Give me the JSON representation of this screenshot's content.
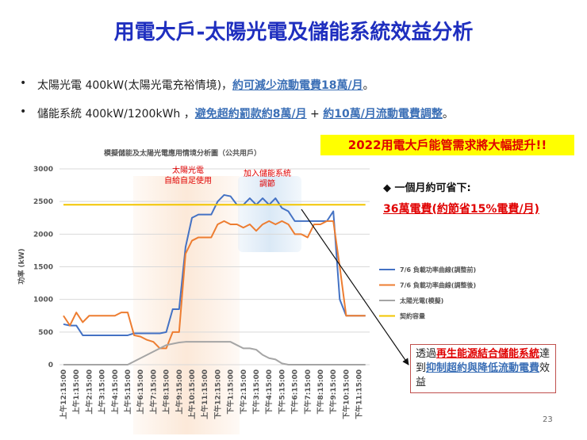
{
  "header": {
    "title": "用電大戶-太陽光電及儲能系統效益分析"
  },
  "bullets": [
    [
      "太陽光電 400kW(太陽光電充裕情境)，",
      "約可減少流動電費18萬/月",
      "。"
    ],
    [
      "儲能系統 400kW/1200kWh ，",
      "避免超約罰款約8萬/月",
      " + ",
      "約10萬/月流動電費調整",
      "。"
    ]
  ],
  "highlight": "2022用電大戶能管需求將大幅提升!!",
  "savings": {
    "label": "◆  一個月約可省下:",
    "value": "36萬電費(約節省15%電費/月)"
  },
  "callout": [
    "透過",
    "再生能源結合儲能系統",
    "達到",
    "抑制超約與降低流動電費",
    "效益"
  ],
  "page_number": "23",
  "chart_data": {
    "type": "line",
    "title": "模擬儲能及太陽光電應用情境分析圖（公共用戶）",
    "y_label": "功率 (kW)",
    "annotations": [
      [
        "太陽光電",
        "自給自足使用"
      ],
      [
        "加入儲能系統",
        "調節"
      ]
    ],
    "categories": [
      "上午12:15:00",
      null,
      "上午1:15:00",
      null,
      "上午2:15:00",
      null,
      "上午3:15:00",
      null,
      "上午4:15:00",
      null,
      "上午5:15:00",
      null,
      "上午6:15:00",
      null,
      "上午7:15:00",
      null,
      "上午8:15:00",
      null,
      "上午9:15:00",
      null,
      "上午10:15:00",
      null,
      "上午11:15:00",
      null,
      "下午12:15:00",
      null,
      "下午1:15:00",
      null,
      "下午2:15:00",
      null,
      "下午3:15:00",
      null,
      "下午4:15:00",
      null,
      "下午5:15:00",
      null,
      "下午6:15:00",
      null,
      "下午7:15:00",
      null,
      "下午8:15:00",
      null,
      "下午9:15:00",
      null,
      "下午10:15:00",
      null,
      "下午11:15:00",
      null
    ],
    "series": [
      {
        "name": "7/6 負載功率曲線(調整前)",
        "color": "#4472c4",
        "values": [
          620,
          600,
          600,
          450,
          450,
          450,
          450,
          450,
          450,
          450,
          450,
          480,
          480,
          480,
          480,
          480,
          500,
          850,
          850,
          1800,
          2250,
          2300,
          2300,
          2300,
          2500,
          2600,
          2580,
          2450,
          2450,
          2550,
          2450,
          2550,
          2450,
          2550,
          2400,
          2350,
          2200,
          2200,
          2200,
          2200,
          2200,
          2200,
          2350,
          1000,
          750,
          750,
          750,
          750
        ]
      },
      {
        "name": "7/6 負載功率曲線(調整後)",
        "color": "#ed7d31",
        "values": [
          750,
          600,
          800,
          650,
          750,
          750,
          750,
          750,
          750,
          800,
          800,
          450,
          430,
          380,
          350,
          250,
          250,
          500,
          500,
          1700,
          1900,
          1950,
          1950,
          1950,
          2150,
          2200,
          2150,
          2150,
          2100,
          2150,
          2050,
          2150,
          2200,
          2150,
          2200,
          2150,
          2000,
          2000,
          1950,
          2150,
          2150,
          2200,
          2200,
          1500,
          750,
          750,
          750,
          750
        ]
      },
      {
        "name": "太陽光電(模擬)",
        "color": "#a5a5a5",
        "values": [
          0,
          0,
          0,
          0,
          0,
          0,
          0,
          0,
          0,
          0,
          0,
          50,
          100,
          150,
          200,
          250,
          300,
          320,
          340,
          350,
          350,
          350,
          350,
          350,
          350,
          350,
          350,
          300,
          250,
          250,
          230,
          150,
          100,
          80,
          20,
          0,
          0,
          0,
          0,
          0,
          0,
          0,
          0,
          0,
          0,
          0,
          0,
          0
        ]
      },
      {
        "name": "契約容量",
        "color": "#f2c500",
        "values": [
          2450,
          2450,
          2450,
          2450,
          2450,
          2450,
          2450,
          2450,
          2450,
          2450,
          2450,
          2450,
          2450,
          2450,
          2450,
          2450,
          2450,
          2450,
          2450,
          2450,
          2450,
          2450,
          2450,
          2450,
          2450,
          2450,
          2450,
          2450,
          2450,
          2450,
          2450,
          2450,
          2450,
          2450,
          2450,
          2450,
          2450,
          2450,
          2450,
          2450,
          2450,
          2450,
          2450,
          2450,
          2450,
          2450,
          2450,
          2450
        ]
      }
    ],
    "ylim": [
      0,
      3000
    ],
    "yticks": [
      0,
      500,
      1000,
      1500,
      2000,
      2500,
      3000
    ],
    "grid": true,
    "legend": "right"
  }
}
